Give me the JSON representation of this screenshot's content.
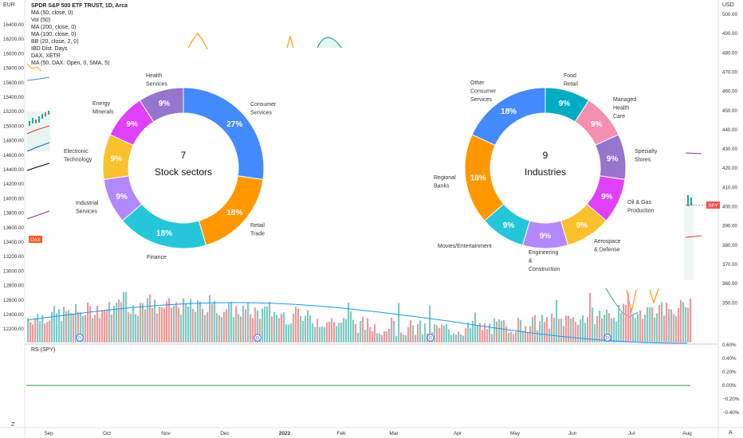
{
  "header": {
    "currency_left": "EUR",
    "currency_right": "USD",
    "title": "SPDR S&P 500 ETF TRUST, 1D, Arca",
    "indicators": [
      "MA (50, close, 0)",
      "Vol (50)",
      "MA (200, close, 0)",
      "MA (100, close, 0)",
      "BB (20, close, 2, 0)",
      "IBD Dist. Days",
      "DAX, XETR",
      "MA (50, DAX: Open, 0, SMA, 5)"
    ]
  },
  "axes": {
    "left_ticks": [
      "16400.00",
      "16200.00",
      "16000.00",
      "15800.00",
      "15600.00",
      "15400.00",
      "15200.00",
      "15000.00",
      "14800.00",
      "14600.00",
      "14400.00",
      "14200.00",
      "14000.00",
      "13800.00",
      "13600.00",
      "13400.00",
      "13200.00",
      "13000.00",
      "12800.00",
      "12600.00",
      "12400.00",
      "12200.00"
    ],
    "right_ticks": [
      "500.00",
      "490.00",
      "480.00",
      "470.00",
      "460.00",
      "450.00",
      "440.00",
      "430.00",
      "420.00",
      "410.00",
      "400.00",
      "390.00",
      "380.00",
      "370.00",
      "360.00",
      "350.00"
    ],
    "rs_ticks": [
      "0.60%",
      "0.40%",
      "0.20%",
      "0.00%",
      "−0.20%",
      "−0.40%"
    ],
    "months": [
      "Sep",
      "Oct",
      "Nov",
      "Dec",
      "2022",
      "Feb",
      "Mar",
      "Apr",
      "May",
      "Jun",
      "Jul",
      "Aug"
    ],
    "dax_badge": "DAX",
    "spy_badge": "SPY"
  },
  "rs_panel": {
    "label": "RS (SPY)"
  },
  "markers": {
    "dividend_letter": "D"
  },
  "bottom": {
    "left_label": "Z",
    "right_label": "A"
  },
  "colors": {
    "blue": "#448aff",
    "orange": "#ff9800",
    "cyan": "#26c6da",
    "purple": "#b388ff",
    "yellow": "#fbc02d",
    "magenta": "#e040fb",
    "violet": "#9575cd",
    "teal": "#00acc1",
    "pink": "#f48fb1",
    "vol_up": "#80cbc4",
    "vol_down": "#ef9a9a",
    "rs_line": "#4caf50",
    "dax_badge": "#ff5722",
    "spy_badge": "#ef5350"
  },
  "chart_data": [
    {
      "type": "pie",
      "title": "7",
      "subtitle": "Stock sectors",
      "slices": [
        {
          "label": "Consumer\nServices",
          "value": 27,
          "text": "27%",
          "color": "#448aff"
        },
        {
          "label": "Retail\nTrade",
          "value": 18,
          "text": "18%",
          "color": "#ff9800"
        },
        {
          "label": "Finance",
          "value": 18,
          "text": "18%",
          "color": "#26c6da"
        },
        {
          "label": "Industrial\nServices",
          "value": 9,
          "text": "9%",
          "color": "#b388ff"
        },
        {
          "label": "Electronic\nTechnology",
          "value": 9,
          "text": "9%",
          "color": "#fbc02d"
        },
        {
          "label": "Energy\nMinerals",
          "value": 9,
          "text": "9%",
          "color": "#e040fb"
        },
        {
          "label": "Health\nServices",
          "value": 9,
          "text": "9%",
          "color": "#9575cd"
        }
      ]
    },
    {
      "type": "pie",
      "title": "9",
      "subtitle": "Industries",
      "slices": [
        {
          "label": "Food\nRetail",
          "value": 9,
          "text": "9%",
          "color": "#00acc1"
        },
        {
          "label": "Managed\nHealth\nCare",
          "value": 9,
          "text": "9%",
          "color": "#f48fb1"
        },
        {
          "label": "Specialty\nStores",
          "value": 9,
          "text": "9%",
          "color": "#9575cd"
        },
        {
          "label": "Oil & Gas\nProduction",
          "value": 9,
          "text": "9%",
          "color": "#e040fb"
        },
        {
          "label": "Aerospace\n& Defense",
          "value": 9,
          "text": "9%",
          "color": "#fbc02d"
        },
        {
          "label": "Engineering\n&\nConstruction",
          "value": 9,
          "text": "9%",
          "color": "#b388ff"
        },
        {
          "label": "Movies/Entertainment",
          "value": 9,
          "text": "9%",
          "color": "#26c6da"
        },
        {
          "label": "Regional\nBanks",
          "value": 18,
          "text": "18%",
          "color": "#ff9800"
        },
        {
          "label": "Other\nConsumer\nServices",
          "value": 18,
          "text": "18%",
          "color": "#448aff"
        }
      ]
    }
  ]
}
